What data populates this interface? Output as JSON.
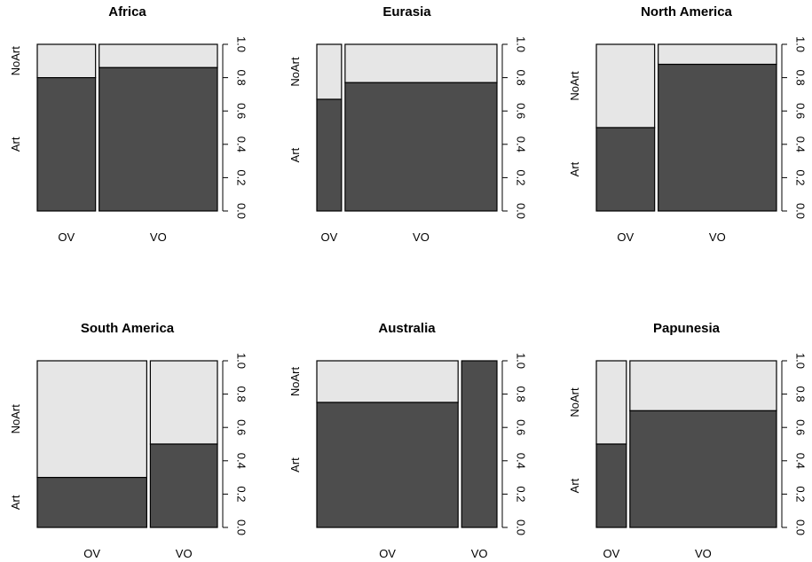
{
  "colors": {
    "art": "#4d4d4d",
    "noart": "#e6e6e6",
    "border": "#000000"
  },
  "y_axis_ticks": [
    "0.0",
    "0.2",
    "0.4",
    "0.6",
    "0.8",
    "1.0"
  ],
  "y_axis_label_art": "Art",
  "y_axis_label_noart": "NoArt",
  "chart_data": [
    {
      "type": "mosaic",
      "title": "Africa",
      "categories": [
        "OV",
        "VO"
      ],
      "widths": [
        0.33,
        0.67
      ],
      "art_proportion": [
        0.8,
        0.86
      ],
      "ylim": [
        0,
        1
      ]
    },
    {
      "type": "mosaic",
      "title": "Eurasia",
      "categories": [
        "OV",
        "VO"
      ],
      "widths": [
        0.14,
        0.86
      ],
      "art_proportion": [
        0.67,
        0.77
      ],
      "ylim": [
        0,
        1
      ]
    },
    {
      "type": "mosaic",
      "title": "North America",
      "categories": [
        "OV",
        "VO"
      ],
      "widths": [
        0.33,
        0.67
      ],
      "art_proportion": [
        0.5,
        0.88
      ],
      "ylim": [
        0,
        1
      ]
    },
    {
      "type": "mosaic",
      "title": "South America",
      "categories": [
        "OV",
        "VO"
      ],
      "widths": [
        0.62,
        0.38
      ],
      "art_proportion": [
        0.3,
        0.5
      ],
      "ylim": [
        0,
        1
      ]
    },
    {
      "type": "mosaic",
      "title": "Australia",
      "categories": [
        "OV",
        "VO"
      ],
      "widths": [
        0.8,
        0.2
      ],
      "art_proportion": [
        0.75,
        1.0
      ],
      "ylim": [
        0,
        1
      ]
    },
    {
      "type": "mosaic",
      "title": "Papunesia",
      "categories": [
        "OV",
        "VO"
      ],
      "widths": [
        0.17,
        0.83
      ],
      "art_proportion": [
        0.5,
        0.7
      ],
      "ylim": [
        0,
        1
      ]
    }
  ]
}
